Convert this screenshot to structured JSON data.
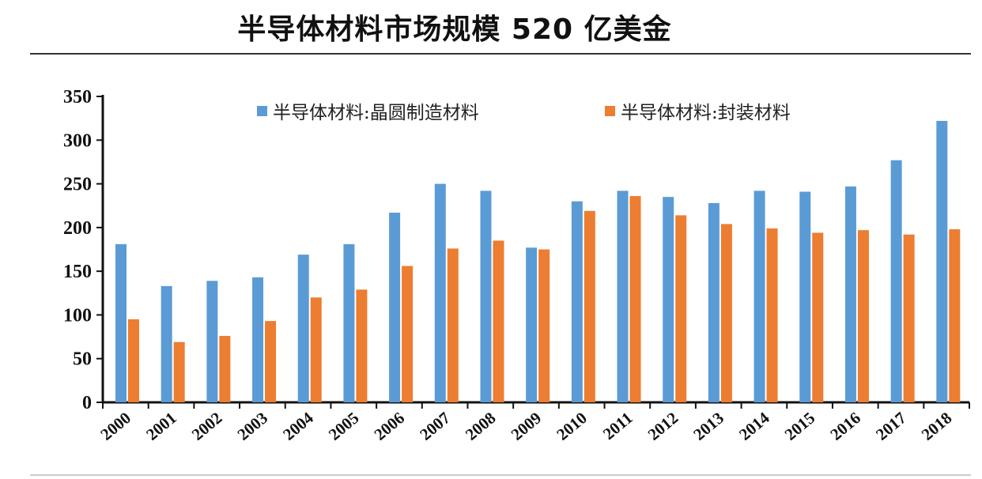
{
  "title": "半导体材料市场规模 520 亿美金",
  "chart_data": {
    "type": "bar",
    "title": "",
    "xlabel": "",
    "ylabel": "",
    "ylim": [
      0,
      350
    ],
    "yticks": [
      0,
      50,
      100,
      150,
      200,
      250,
      300,
      350
    ],
    "grid": false,
    "legend_position": "top",
    "categories": [
      "2000",
      "2001",
      "2002",
      "2003",
      "2004",
      "2005",
      "2006",
      "2007",
      "2008",
      "2009",
      "2010",
      "2011",
      "2012",
      "2013",
      "2014",
      "2015",
      "2016",
      "2017",
      "2018"
    ],
    "series": [
      {
        "name": "半导体材料:晶圆制造材料",
        "color": "#5b9bd5",
        "values": [
          181,
          133,
          139,
          143,
          169,
          181,
          217,
          250,
          242,
          177,
          230,
          242,
          235,
          228,
          242,
          241,
          247,
          277,
          322
        ]
      },
      {
        "name": "半导体材料:封装材料",
        "color": "#ed7d31",
        "values": [
          95,
          69,
          76,
          93,
          120,
          129,
          156,
          176,
          185,
          175,
          219,
          236,
          214,
          204,
          199,
          194,
          197,
          192,
          198
        ]
      }
    ]
  }
}
